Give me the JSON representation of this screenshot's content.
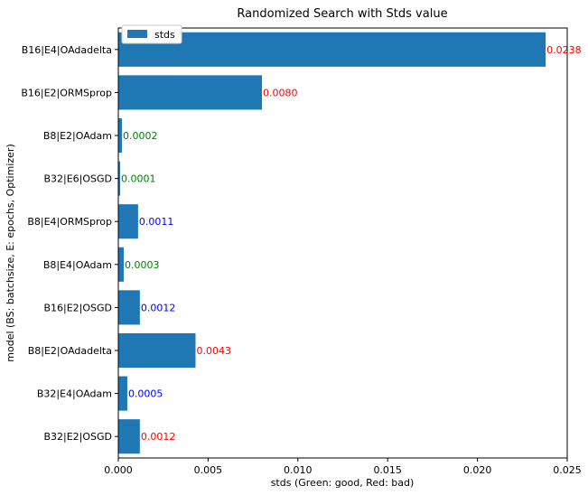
{
  "chart_data": {
    "type": "bar",
    "orientation": "horizontal",
    "title": "Randomized Search with Stds value",
    "xlabel": "stds (Green: good, Red: bad)",
    "ylabel": "model (BS: batchsize, E: epochs, Optimizer)",
    "xlim": [
      0,
      0.025
    ],
    "xticks": [
      "0.000",
      "0.005",
      "0.010",
      "0.015",
      "0.020",
      "0.025"
    ],
    "xtick_values": [
      0,
      0.005,
      0.01,
      0.015,
      0.02,
      0.025
    ],
    "bar_color": "#1f77b4",
    "grid": false,
    "legend": {
      "position": "upper-left",
      "entries": [
        "stds"
      ]
    },
    "categories": [
      "B16|E4|OAdadelta",
      "B16|E2|ORMSprop",
      "B8|E2|OAdam",
      "B32|E6|OSGD",
      "B8|E4|ORMSprop",
      "B8|E4|OAdam",
      "B16|E2|OSGD",
      "B8|E2|OAdadelta",
      "B32|E4|OAdam",
      "B32|E2|OSGD"
    ],
    "values": [
      0.0238,
      0.008,
      0.0002,
      0.0001,
      0.0011,
      0.0003,
      0.0012,
      0.0043,
      0.0005,
      0.0012
    ],
    "value_labels": [
      "0.0238",
      "0.0080",
      "0.0002",
      "0.0001",
      "0.0011",
      "0.0003",
      "0.0012",
      "0.0043",
      "0.0005",
      "0.0012"
    ],
    "label_colors": [
      "#ff0000",
      "#ff0000",
      "#008000",
      "#008000",
      "#0000ff",
      "#008000",
      "#0000ff",
      "#ff0000",
      "#0000ff",
      "#ff0000"
    ]
  }
}
